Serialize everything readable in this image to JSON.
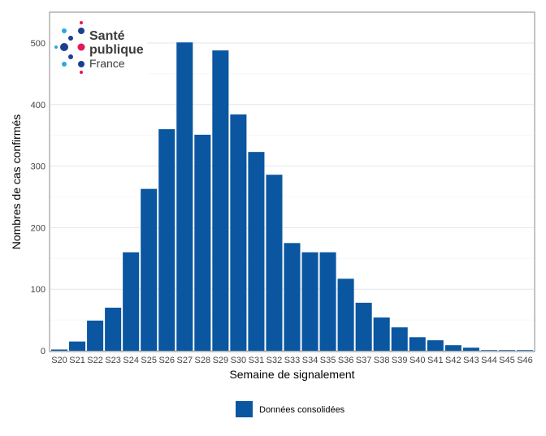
{
  "logo": {
    "line1": "Santé",
    "line2": "publique",
    "line3": "France"
  },
  "chart_data": {
    "type": "bar",
    "title": "",
    "xlabel": "Semaine de signalement",
    "ylabel": "Nombres de cas confirmés",
    "ylim": [
      0,
      520
    ],
    "yticks": [
      0,
      100,
      200,
      300,
      400,
      500
    ],
    "grid": true,
    "legend_position": "bottom",
    "categories": [
      "S20",
      "S21",
      "S22",
      "S23",
      "S24",
      "S25",
      "S26",
      "S27",
      "S28",
      "S29",
      "S30",
      "S31",
      "S32",
      "S33",
      "S34",
      "S35",
      "S36",
      "S37",
      "S38",
      "S39",
      "S40",
      "S41",
      "S42",
      "S43",
      "S44",
      "S45",
      "S46"
    ],
    "series": [
      {
        "name": "Données consolidées",
        "color": "#0a56a0",
        "values": [
          2,
          15,
          49,
          70,
          160,
          263,
          360,
          501,
          351,
          488,
          384,
          323,
          286,
          175,
          160,
          160,
          117,
          78,
          54,
          38,
          22,
          17,
          9,
          5,
          1,
          1,
          1
        ]
      }
    ]
  }
}
